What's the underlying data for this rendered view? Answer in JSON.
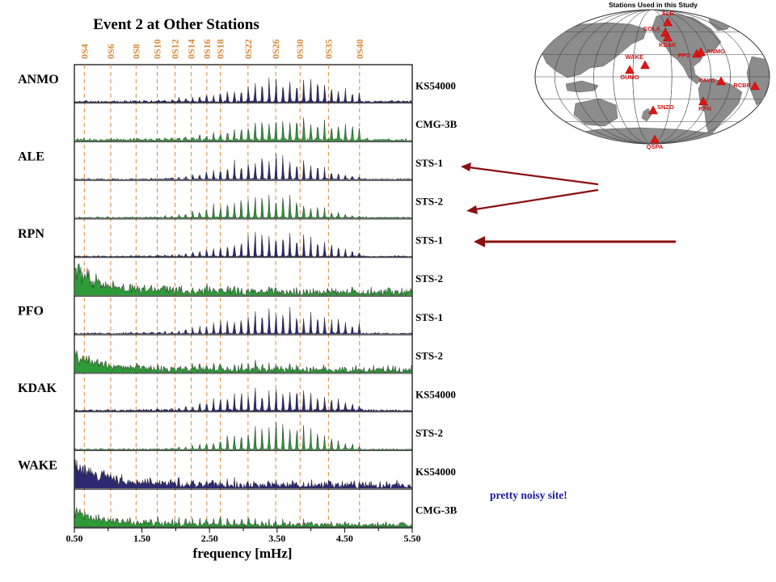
{
  "chart_data": {
    "type": "area",
    "title": "Event 2 at Other Stations",
    "xlabel": "frequency [mHz]",
    "xlim": [
      0.5,
      5.5
    ],
    "x_ticks": [
      "0.50",
      "1.50",
      "2.50",
      "3.50",
      "4.50",
      "5.50"
    ],
    "x_tick_values": [
      0.5,
      1.5,
      2.5,
      3.5,
      4.5,
      5.5
    ],
    "x_minor_tick_values": [
      1.0,
      2.0,
      3.0,
      4.0,
      5.0
    ],
    "modes": [
      {
        "label": "0S4",
        "freq": 0.647
      },
      {
        "label": "0S6",
        "freq": 1.038
      },
      {
        "label": "0S8",
        "freq": 1.413
      },
      {
        "label": "0S10",
        "freq": 1.727
      },
      {
        "label": "0S12",
        "freq": 1.99
      },
      {
        "label": "0S14",
        "freq": 2.23
      },
      {
        "label": "0S16",
        "freq": 2.46
      },
      {
        "label": "0S18",
        "freq": 2.66
      },
      {
        "label": "0S22",
        "freq": 3.07
      },
      {
        "label": "0S26",
        "freq": 3.48
      },
      {
        "label": "0S30",
        "freq": 3.84
      },
      {
        "label": "0S35",
        "freq": 4.26
      },
      {
        "label": "0S40",
        "freq": 4.72
      }
    ],
    "colors": {
      "sts1_kinematic": "#2e2a72",
      "broadband_2": "#2f9a38",
      "mode_line": "#d8893a",
      "arrow": "#8b1010",
      "note": "#1a1aa0"
    },
    "stations": [
      {
        "name": "ANMO",
        "traces": [
          {
            "instrument": "KS54000",
            "color": "#2e2a72",
            "noise": 0.08,
            "mode_amp": 0.85,
            "envelope_center": 3.6,
            "envelope_width": 1.1
          },
          {
            "instrument": "CMG-3B",
            "color": "#2f9a38",
            "noise": 0.1,
            "mode_amp": 0.8,
            "envelope_center": 3.8,
            "envelope_width": 1.2
          }
        ]
      },
      {
        "name": "ALE",
        "traces": [
          {
            "instrument": "STS-1",
            "color": "#2e2a72",
            "noise": 0.05,
            "mode_amp": 0.9,
            "envelope_center": 3.4,
            "envelope_width": 0.9
          },
          {
            "instrument": "STS-2",
            "color": "#2f9a38",
            "noise": 0.06,
            "mode_amp": 0.9,
            "envelope_center": 3.3,
            "envelope_width": 0.9
          }
        ]
      },
      {
        "name": "RPN",
        "traces": [
          {
            "instrument": "STS-1",
            "color": "#2e2a72",
            "noise": 0.05,
            "mode_amp": 0.9,
            "envelope_center": 3.5,
            "envelope_width": 1.0
          },
          {
            "instrument": "STS-2",
            "color": "#2f9a38",
            "noise": 0.3,
            "mode_amp": 0.2,
            "envelope_center": 2.5,
            "envelope_width": 1.5,
            "low_noise": 0.95
          }
        ]
      },
      {
        "name": "PFO",
        "traces": [
          {
            "instrument": "STS-1",
            "color": "#2e2a72",
            "noise": 0.06,
            "mode_amp": 0.8,
            "envelope_center": 3.6,
            "envelope_width": 1.2
          },
          {
            "instrument": "STS-2",
            "color": "#2f9a38",
            "noise": 0.25,
            "mode_amp": 0.25,
            "envelope_center": 2.6,
            "envelope_width": 1.5,
            "low_noise": 0.6
          }
        ]
      },
      {
        "name": "KDAK",
        "traces": [
          {
            "instrument": "KS54000",
            "color": "#2e2a72",
            "noise": 0.08,
            "mode_amp": 0.85,
            "envelope_center": 3.5,
            "envelope_width": 1.1
          },
          {
            "instrument": "STS-2",
            "color": "#2f9a38",
            "noise": 0.05,
            "mode_amp": 0.95,
            "envelope_center": 3.5,
            "envelope_width": 0.9
          }
        ]
      },
      {
        "name": "WAKE",
        "traces": [
          {
            "instrument": "KS54000",
            "color": "#2e2a72",
            "noise": 0.3,
            "mode_amp": 0.15,
            "envelope_center": 2.5,
            "envelope_width": 1.5,
            "low_noise": 0.9
          },
          {
            "instrument": "CMG-3B",
            "color": "#2f9a38",
            "noise": 0.2,
            "mode_amp": 0.25,
            "envelope_center": 2.5,
            "envelope_width": 1.5,
            "low_noise": 0.6
          }
        ]
      }
    ]
  },
  "map": {
    "title": "Stations Used in this Study",
    "stations": [
      {
        "name": "ALE",
        "lon": -62,
        "lat": 82
      },
      {
        "name": "COLA",
        "lon": -148,
        "lat": 65
      },
      {
        "name": "KDAK",
        "lon": -152,
        "lat": 58
      },
      {
        "name": "PFO",
        "lon": -116,
        "lat": 34
      },
      {
        "name": "ANMO",
        "lon": -106,
        "lat": 35
      },
      {
        "name": "WAKE",
        "lon": 167,
        "lat": 19
      },
      {
        "name": "GUMO",
        "lon": 145,
        "lat": 13
      },
      {
        "name": "PAYG",
        "lon": -90,
        "lat": -1
      },
      {
        "name": "RCBR",
        "lon": -36,
        "lat": -6
      },
      {
        "name": "SNZO",
        "lon": 175,
        "lat": -41
      },
      {
        "name": "RPN",
        "lon": -109,
        "lat": -27
      },
      {
        "name": "QSPA",
        "lon": 0,
        "lat": -90
      }
    ]
  },
  "annotations": {
    "note": "pretty noisy site!"
  }
}
